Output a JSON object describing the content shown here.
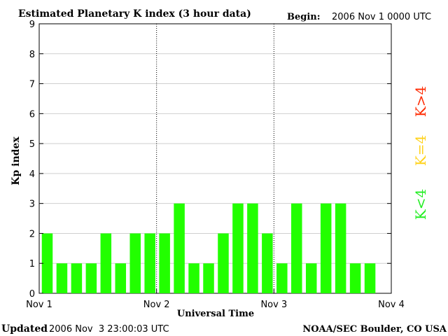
{
  "header": {
    "title": "Estimated Planetary K index (3 hour data)",
    "begin_label": "Begin:",
    "begin_value": "2006 Nov 1 0000 UTC"
  },
  "footer": {
    "updated_label": "Updated",
    "updated_value": "2006 Nov  3 23:00:03 UTC",
    "source": "NOAA/SEC Boulder, CO USA"
  },
  "legend": {
    "items": [
      {
        "label": "K>4",
        "color": "#ff2a00"
      },
      {
        "label": "K=4",
        "color": "#ffd21a"
      },
      {
        "label": "K<4",
        "color": "#22ee22"
      }
    ],
    "placement": "right"
  },
  "colors": {
    "bar": "#22ff00",
    "axis": "#000000"
  },
  "chart_data": {
    "type": "bar",
    "title": "Estimated Planetary K index (3 hour data)",
    "xlabel": "Universal Time",
    "ylabel": "Kp index",
    "ylim": [
      0,
      9
    ],
    "yticks": [
      0,
      1,
      2,
      3,
      4,
      5,
      6,
      7,
      8,
      9
    ],
    "xlim": [
      0,
      24
    ],
    "xtick_labels": [
      "Nov 1",
      "Nov 2",
      "Nov 3",
      "Nov 4"
    ],
    "day_separators": [
      8,
      16
    ],
    "grid": "horizontal",
    "values": [
      2,
      1,
      1,
      1,
      2,
      1,
      2,
      2,
      2,
      3,
      1,
      1,
      2,
      3,
      3,
      2,
      1,
      3,
      1,
      3,
      3,
      1,
      1
    ]
  }
}
